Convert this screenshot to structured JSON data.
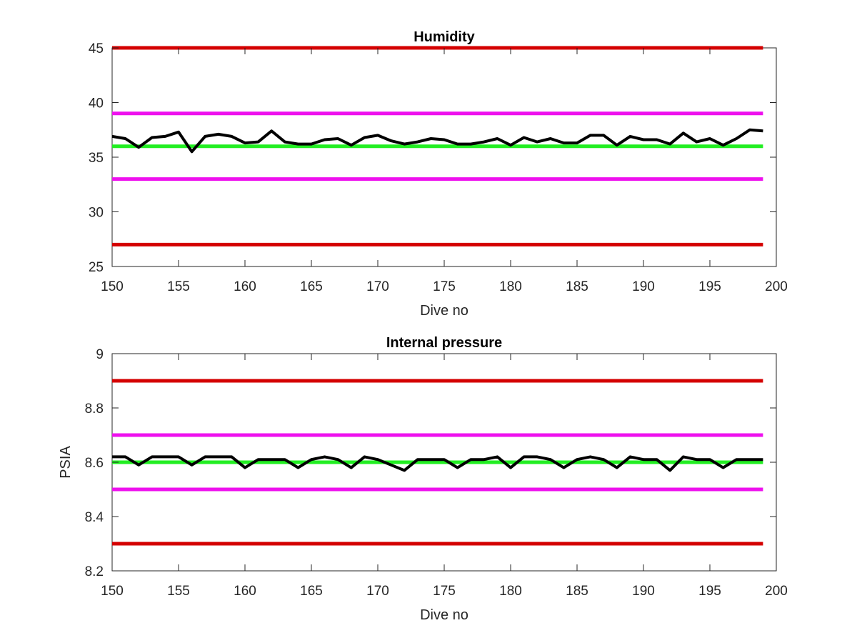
{
  "chart_data": [
    {
      "type": "line",
      "title": "Humidity",
      "xlabel": "Dive no",
      "ylabel": "",
      "xlim": [
        150,
        200
      ],
      "ylim": [
        25,
        45
      ],
      "xticks": [
        150,
        155,
        160,
        165,
        170,
        175,
        180,
        185,
        190,
        195,
        200
      ],
      "yticks": [
        25,
        30,
        35,
        40,
        45
      ],
      "grid": false,
      "legend": "none",
      "reference_lines": [
        {
          "y": 45,
          "color": "#d40000"
        },
        {
          "y": 39,
          "color": "#ee10ee"
        },
        {
          "y": 36,
          "color": "#22ee22"
        },
        {
          "y": 33,
          "color": "#ee10ee"
        },
        {
          "y": 27,
          "color": "#d40000"
        }
      ],
      "series": [
        {
          "color": "#000000",
          "x": [
            150,
            151,
            152,
            153,
            154,
            155,
            156,
            157,
            158,
            159,
            160,
            161,
            162,
            163,
            164,
            165,
            166,
            167,
            168,
            169,
            170,
            171,
            172,
            173,
            174,
            175,
            176,
            177,
            178,
            179,
            180,
            181,
            182,
            183,
            184,
            185,
            186,
            187,
            188,
            189,
            190,
            191,
            192,
            193,
            194,
            195,
            196,
            197,
            198,
            199
          ],
          "y": [
            36.9,
            36.7,
            35.9,
            36.8,
            36.9,
            37.3,
            35.5,
            36.9,
            37.1,
            36.9,
            36.3,
            36.4,
            37.4,
            36.4,
            36.2,
            36.2,
            36.6,
            36.7,
            36.1,
            36.8,
            37.0,
            36.5,
            36.2,
            36.4,
            36.7,
            36.6,
            36.2,
            36.2,
            36.4,
            36.7,
            36.1,
            36.8,
            36.4,
            36.7,
            36.3,
            36.3,
            37.0,
            37.0,
            36.1,
            36.9,
            36.6,
            36.6,
            36.2,
            37.2,
            36.4,
            36.7,
            36.1,
            36.7,
            37.5,
            37.4
          ]
        }
      ]
    },
    {
      "type": "line",
      "title": "Internal pressure",
      "xlabel": "Dive no",
      "ylabel": "PSIA",
      "xlim": [
        150,
        200
      ],
      "ylim": [
        8.2,
        9
      ],
      "xticks": [
        150,
        155,
        160,
        165,
        170,
        175,
        180,
        185,
        190,
        195,
        200
      ],
      "yticks": [
        8.2,
        8.4,
        8.6,
        8.8,
        9
      ],
      "grid": false,
      "legend": "none",
      "reference_lines": [
        {
          "y": 8.9,
          "color": "#d40000"
        },
        {
          "y": 8.7,
          "color": "#ee10ee"
        },
        {
          "y": 8.6,
          "color": "#22ee22"
        },
        {
          "y": 8.5,
          "color": "#ee10ee"
        },
        {
          "y": 8.3,
          "color": "#d40000"
        }
      ],
      "series": [
        {
          "color": "#000000",
          "x": [
            150,
            151,
            152,
            153,
            154,
            155,
            156,
            157,
            158,
            159,
            160,
            161,
            162,
            163,
            164,
            165,
            166,
            167,
            168,
            169,
            170,
            171,
            172,
            173,
            174,
            175,
            176,
            177,
            178,
            179,
            180,
            181,
            182,
            183,
            184,
            185,
            186,
            187,
            188,
            189,
            190,
            191,
            192,
            193,
            194,
            195,
            196,
            197,
            198,
            199
          ],
          "y": [
            8.62,
            8.62,
            8.59,
            8.62,
            8.62,
            8.62,
            8.59,
            8.62,
            8.62,
            8.62,
            8.58,
            8.61,
            8.61,
            8.61,
            8.58,
            8.61,
            8.62,
            8.61,
            8.58,
            8.62,
            8.61,
            8.59,
            8.57,
            8.61,
            8.61,
            8.61,
            8.58,
            8.61,
            8.61,
            8.62,
            8.58,
            8.62,
            8.62,
            8.61,
            8.58,
            8.61,
            8.62,
            8.61,
            8.58,
            8.62,
            8.61,
            8.61,
            8.57,
            8.62,
            8.61,
            8.61,
            8.58,
            8.61,
            8.61,
            8.61
          ]
        }
      ]
    }
  ]
}
